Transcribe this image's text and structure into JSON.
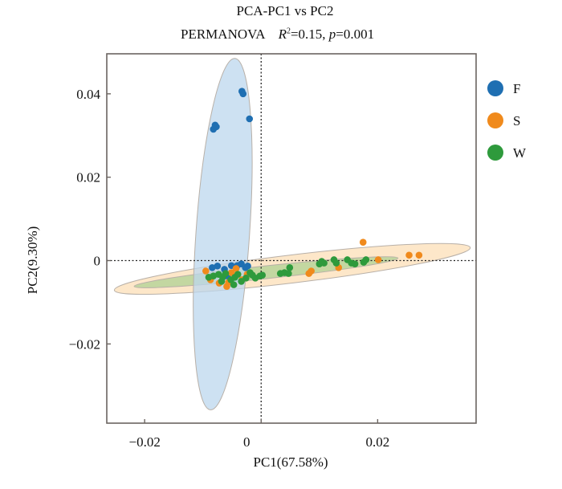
{
  "chart_data": {
    "type": "scatter",
    "title": "PCA-PC1 vs PC2",
    "subtitle": {
      "method": "PERMANOVA",
      "r2_label": "R",
      "r2_sup": "2",
      "r2_value": "=0.15, ",
      "p_label": "p",
      "p_value": "=0.001"
    },
    "xlabel": "PC1(67.58%)",
    "ylabel": "PC2(9.30%)",
    "xlim": [
      -0.0265,
      0.0369
    ],
    "ylim": [
      -0.039,
      0.0496
    ],
    "xticks": [
      {
        "value": -0.02,
        "label": "−0.02"
      },
      {
        "value": 0,
        "label": "0"
      },
      {
        "value": 0.02,
        "label": "0.02"
      }
    ],
    "yticks": [
      {
        "value": 0.04,
        "label": "0.04"
      },
      {
        "value": 0.02,
        "label": "0.02"
      },
      {
        "value": 0,
        "label": "0"
      },
      {
        "value": -0.02,
        "label": "−0.02"
      }
    ],
    "reference_lines": {
      "x": 0.0,
      "y": 0.0
    },
    "grid": false,
    "legend_position": "right",
    "series": [
      {
        "name": "F",
        "color": "#1f6fb2",
        "ellipse": {
          "fill": "#bcd7ee",
          "tip1": [
            -0.0045,
            0.0485
          ],
          "tip2": [
            -0.0087,
            -0.0358
          ],
          "minor_half_x": 0.0046
        },
        "points": [
          [
            -0.0033,
            0.0406
          ],
          [
            -0.0031,
            0.04
          ],
          [
            -0.002,
            0.034
          ],
          [
            -0.0079,
            0.0325
          ],
          [
            -0.0082,
            0.0315
          ],
          [
            -0.0077,
            0.0321
          ],
          [
            -0.0084,
            -0.0017
          ],
          [
            -0.0075,
            -0.0013
          ],
          [
            -0.0063,
            -0.0021
          ],
          [
            -0.0051,
            -0.0012
          ],
          [
            -0.0041,
            -0.0012
          ],
          [
            -0.0034,
            -0.0008
          ],
          [
            -0.0027,
            -0.0017
          ],
          [
            -0.0023,
            -0.0013
          ],
          [
            -0.0058,
            -0.0037
          ]
        ]
      },
      {
        "name": "S",
        "color": "#f08a1c",
        "ellipse": {
          "fill": "#fde3bf",
          "tip1": [
            -0.0252,
            -0.0071
          ],
          "tip2": [
            0.0359,
            0.0031
          ],
          "minor_half_x": 0.0024
        },
        "points": [
          [
            -0.0095,
            -0.0025
          ],
          [
            -0.0087,
            -0.0046
          ],
          [
            -0.0072,
            -0.0054
          ],
          [
            -0.0056,
            -0.0052
          ],
          [
            -0.0051,
            -0.0029
          ],
          [
            -0.0043,
            -0.0019
          ],
          [
            -0.0033,
            -0.0046
          ],
          [
            -0.0024,
            -0.0033
          ],
          [
            -0.0059,
            -0.0062
          ],
          [
            0.0082,
            -0.0031
          ],
          [
            0.0086,
            -0.0025
          ],
          [
            0.0133,
            -0.0017
          ],
          [
            0.0175,
            0.0044
          ],
          [
            0.0201,
            0.0002
          ],
          [
            0.0254,
            0.0013
          ],
          [
            0.0271,
            0.0013
          ]
        ]
      },
      {
        "name": "W",
        "color": "#2e9a3c",
        "ellipse": {
          "fill": "#b9d49a",
          "tip1": [
            -0.0218,
            -0.0062
          ],
          "tip2": [
            0.0235,
            0.0006
          ],
          "minor_half_x": 0.0011
        },
        "points": [
          [
            -0.009,
            -0.004
          ],
          [
            -0.0082,
            -0.0037
          ],
          [
            -0.0073,
            -0.0033
          ],
          [
            -0.0066,
            -0.004
          ],
          [
            -0.0061,
            -0.0031
          ],
          [
            -0.0052,
            -0.0046
          ],
          [
            -0.0045,
            -0.004
          ],
          [
            -0.004,
            -0.0033
          ],
          [
            -0.0034,
            -0.005
          ],
          [
            -0.0026,
            -0.0042
          ],
          [
            -0.0019,
            -0.0029
          ],
          [
            -0.0015,
            -0.0035
          ],
          [
            -0.001,
            -0.0042
          ],
          [
            -0.0002,
            -0.0037
          ],
          [
            0.0002,
            -0.0035
          ],
          [
            -0.0047,
            -0.0058
          ],
          [
            -0.0068,
            -0.005
          ],
          [
            0.0033,
            -0.0031
          ],
          [
            0.004,
            -0.0029
          ],
          [
            0.0047,
            -0.0031
          ],
          [
            0.0049,
            -0.0017
          ],
          [
            0.01,
            -0.0008
          ],
          [
            0.0104,
            -0.0002
          ],
          [
            0.0108,
            -0.0006
          ],
          [
            0.0125,
            0.0002
          ],
          [
            0.0129,
            -0.0006
          ],
          [
            0.0148,
            0.0002
          ],
          [
            0.0155,
            -0.0006
          ],
          [
            0.0161,
            -0.0008
          ],
          [
            0.0176,
            -0.0004
          ],
          [
            0.018,
            0.0002
          ]
        ]
      }
    ]
  }
}
